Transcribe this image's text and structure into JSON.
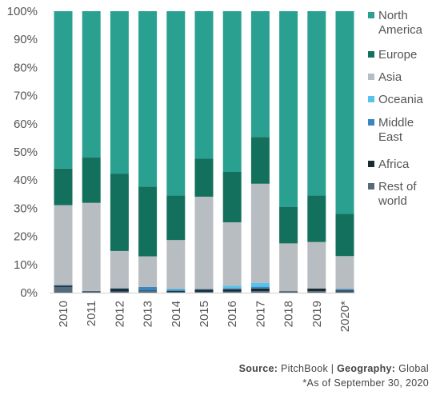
{
  "chart_data": {
    "type": "bar",
    "stacked": true,
    "categories": [
      "2010",
      "2011",
      "2012",
      "2013",
      "2014",
      "2015",
      "2016",
      "2017",
      "2018",
      "2019",
      "2020*"
    ],
    "ylim": [
      0,
      100
    ],
    "yticks": [
      "0%",
      "10%",
      "20%",
      "30%",
      "40%",
      "50%",
      "60%",
      "70%",
      "80%",
      "90%",
      "100%"
    ],
    "grid": false,
    "legend_position": "right",
    "series": [
      {
        "name": "Rest of world",
        "color": "#566b7a",
        "values": [
          2.0,
          0.3,
          0.4,
          0.5,
          0.3,
          0.3,
          0.4,
          0.5,
          0.3,
          0.5,
          0.4
        ]
      },
      {
        "name": "Africa",
        "color": "#1a2b33",
        "values": [
          0.5,
          0.2,
          1.0,
          0.2,
          0.3,
          0.8,
          0.8,
          1.0,
          0.2,
          1.0,
          0.4
        ]
      },
      {
        "name": "Middle East",
        "color": "#3a86c0",
        "values": [
          0.2,
          0.1,
          0.2,
          1.3,
          0.5,
          0.2,
          0.4,
          0.6,
          0.0,
          0.0,
          0.5
        ]
      },
      {
        "name": "Oceania",
        "color": "#58c3e8",
        "values": [
          0.0,
          0.0,
          0.0,
          0.0,
          0.3,
          0.0,
          0.9,
          1.4,
          0.0,
          0.0,
          0.0
        ]
      },
      {
        "name": "Asia",
        "color": "#b8bdc1",
        "values": [
          28.4,
          31.3,
          13.2,
          10.9,
          17.3,
          32.8,
          22.5,
          35.2,
          17.0,
          16.5,
          11.7
        ]
      },
      {
        "name": "Europe",
        "color": "#13705d",
        "values": [
          13.0,
          16.1,
          27.5,
          24.8,
          15.8,
          13.5,
          17.9,
          16.6,
          13.0,
          16.5,
          15.0
        ]
      },
      {
        "name": "North America",
        "color": "#2aa091",
        "values": [
          55.9,
          52.0,
          57.7,
          62.3,
          65.5,
          52.4,
          57.1,
          44.7,
          69.5,
          65.5,
          72.0
        ]
      }
    ],
    "legend_order": [
      "North America",
      "Europe",
      "Asia",
      "Oceania",
      "Middle East",
      "Africa",
      "Rest of world"
    ]
  },
  "legend_lines": {
    "North America": [
      "North",
      "America"
    ],
    "Europe": [
      "Europe"
    ],
    "Asia": [
      "Asia"
    ],
    "Oceania": [
      "Oceania"
    ],
    "Middle East": [
      "Middle",
      "East"
    ],
    "Africa": [
      "Africa"
    ],
    "Rest of world": [
      "Rest of",
      "world"
    ]
  },
  "footer": {
    "source_label": "Source:",
    "source_value": "PitchBook",
    "separator": "|",
    "geography_label": "Geography:",
    "geography_value": "Global",
    "as_of": "*As of September 30, 2020"
  }
}
